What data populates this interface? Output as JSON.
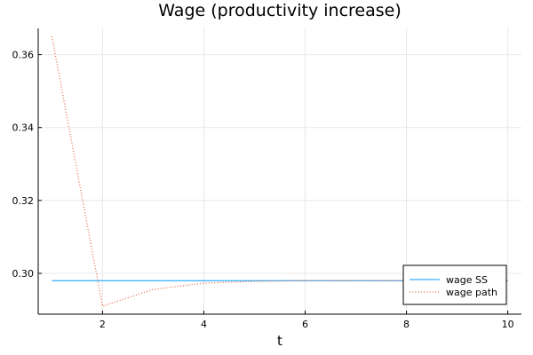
{
  "chart_data": {
    "type": "line",
    "title": "Wage (productivity increase)",
    "xlabel": "t",
    "ylabel": "",
    "xlim": [
      0.73,
      10.27
    ],
    "ylim": [
      0.2888,
      0.3672
    ],
    "xticks": [
      2,
      4,
      6,
      8,
      10
    ],
    "yticks": [
      0.3,
      0.32,
      0.34,
      0.36
    ],
    "ytick_labels": [
      "0.30",
      "0.32",
      "0.34",
      "0.36"
    ],
    "grid": true,
    "legend_position": "bottom-right",
    "series": [
      {
        "name": "wage SS",
        "color": "#009AFA",
        "style": "solid",
        "x": [
          1,
          2,
          3,
          4,
          5,
          6,
          7,
          8,
          9,
          10
        ],
        "y": [
          0.298,
          0.298,
          0.298,
          0.298,
          0.298,
          0.298,
          0.298,
          0.298,
          0.298,
          0.298
        ]
      },
      {
        "name": "wage path",
        "color": "#E26F46",
        "style": "dotted",
        "x": [
          1,
          2,
          3,
          4,
          5,
          6,
          7,
          8,
          9,
          10
        ],
        "y": [
          0.365,
          0.291,
          0.2956,
          0.2973,
          0.2978,
          0.298,
          0.298,
          0.298,
          0.298,
          0.298
        ]
      }
    ]
  }
}
